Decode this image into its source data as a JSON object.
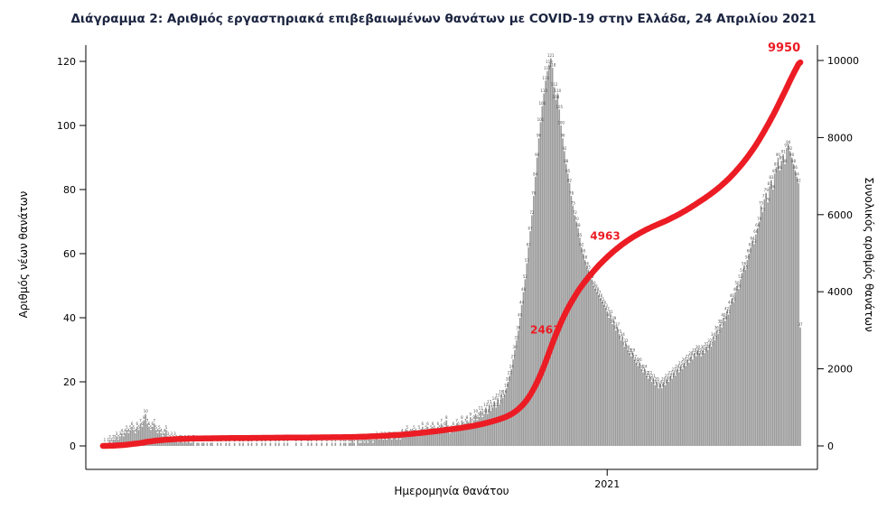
{
  "title": "Διάγραμμα 2: Αριθμός εργαστηριακά επιβεβαιωμένων θανάτων με COVID-19 στην Ελλάδα, 24 Απριλίου 2021",
  "colors": {
    "title_text": "#1b2440",
    "bar": "#9b9b9b",
    "bar_label": "#4d4d4d",
    "line": "#ec1c24",
    "axis": "#000000"
  },
  "axes": {
    "left_label": "Αριθμός νέων θανάτων",
    "right_label": "Συνολικός αριθμός θανάτων",
    "bottom_label": "Ημερομηνία θανάτου",
    "left_ticks": [
      0,
      20,
      40,
      60,
      80,
      100,
      120
    ],
    "right_ticks": [
      0,
      2000,
      4000,
      6000,
      8000,
      10000
    ],
    "x_ticks": [
      {
        "label": "2021",
        "day_index": 295
      }
    ]
  },
  "chart_data": {
    "type": "bar",
    "title": "Διάγραμμα 2: Αριθμός εργαστηριακά επιβεβαιωμένων θανάτων με COVID-19 στην Ελλάδα, 24 Απριλίου 2021",
    "xlabel": "Ημερομηνία θανάτου",
    "ylabel": "Αριθμός νέων θανάτων",
    "ylabel_right": "Συνολικός αριθμός θανάτων",
    "ylim_left": [
      0,
      120
    ],
    "ylim_right": [
      0,
      10000
    ],
    "x_unit": "day",
    "x_year_tick": "2021",
    "daily_deaths": [
      0,
      1,
      0,
      1,
      2,
      1,
      2,
      2,
      3,
      2,
      3,
      4,
      3,
      4,
      5,
      4,
      5,
      6,
      5,
      4,
      6,
      5,
      7,
      6,
      8,
      10,
      7,
      6,
      5,
      6,
      7,
      5,
      4,
      5,
      4,
      3,
      4,
      5,
      3,
      2,
      3,
      2,
      3,
      2,
      1,
      2,
      2,
      1,
      2,
      1,
      2,
      1,
      1,
      2,
      0,
      1,
      1,
      0,
      1,
      1,
      0,
      1,
      0,
      1,
      1,
      0,
      0,
      1,
      0,
      1,
      0,
      0,
      1,
      0,
      1,
      0,
      0,
      1,
      0,
      0,
      1,
      0,
      1,
      0,
      0,
      1,
      0,
      1,
      0,
      0,
      1,
      0,
      0,
      1,
      0,
      1,
      0,
      0,
      1,
      0,
      0,
      1,
      0,
      1,
      0,
      0,
      1,
      0,
      1,
      0,
      0,
      0,
      0,
      1,
      0,
      0,
      1,
      0,
      0,
      0,
      1,
      0,
      1,
      0,
      0,
      1,
      0,
      0,
      1,
      0,
      0,
      1,
      0,
      0,
      1,
      0,
      1,
      0,
      0,
      1,
      0,
      1,
      1,
      0,
      1,
      1,
      2,
      1,
      0,
      2,
      1,
      1,
      2,
      1,
      2,
      1,
      2,
      2,
      1,
      2,
      3,
      2,
      2,
      3,
      2,
      3,
      2,
      3,
      3,
      2,
      3,
      3,
      2,
      3,
      2,
      4,
      3,
      4,
      5,
      3,
      4,
      4,
      5,
      4,
      3,
      5,
      4,
      6,
      4,
      5,
      6,
      4,
      5,
      6,
      5,
      4,
      6,
      5,
      7,
      5,
      6,
      8,
      5,
      4,
      5,
      6,
      5,
      7,
      6,
      5,
      8,
      6,
      7,
      8,
      6,
      9,
      7,
      8,
      10,
      8,
      9,
      11,
      9,
      10,
      12,
      10,
      13,
      11,
      12,
      14,
      12,
      15,
      13,
      16,
      15,
      16,
      18,
      20,
      22,
      24,
      27,
      30,
      33,
      36,
      40,
      44,
      48,
      52,
      57,
      62,
      67,
      72,
      78,
      84,
      90,
      96,
      101,
      106,
      110,
      114,
      117,
      119,
      121,
      118,
      112,
      108,
      110,
      105,
      100,
      96,
      92,
      88,
      85,
      82,
      78,
      75,
      72,
      70,
      68,
      65,
      62,
      60,
      58,
      56,
      55,
      53,
      52,
      50,
      49,
      48,
      47,
      46,
      45,
      44,
      43,
      42,
      40,
      41,
      38,
      39,
      36,
      37,
      35,
      33,
      34,
      31,
      32,
      30,
      29,
      28,
      29,
      27,
      26,
      25,
      26,
      24,
      23,
      24,
      22,
      21,
      22,
      20,
      21,
      19,
      20,
      18,
      19,
      18,
      20,
      19,
      21,
      20,
      22,
      21,
      23,
      22,
      24,
      23,
      25,
      24,
      26,
      25,
      27,
      26,
      28,
      27,
      29,
      28,
      30,
      29,
      28,
      30,
      29,
      31,
      30,
      32,
      31,
      34,
      33,
      36,
      35,
      38,
      37,
      40,
      39,
      42,
      41,
      44,
      46,
      45,
      48,
      50,
      49,
      52,
      54,
      56,
      55,
      58,
      60,
      62,
      64,
      63,
      66,
      68,
      70,
      75,
      73,
      77,
      79,
      76,
      81,
      83,
      80,
      85,
      87,
      90,
      86,
      89,
      91,
      88,
      93,
      94,
      92,
      90,
      88,
      86,
      84,
      82,
      37
    ],
    "cumulative": {
      "type": "line",
      "definition": "running total of daily_deaths, red curve on right axis",
      "final_total": 9950,
      "milestones": [
        2463,
        4963
      ]
    }
  }
}
